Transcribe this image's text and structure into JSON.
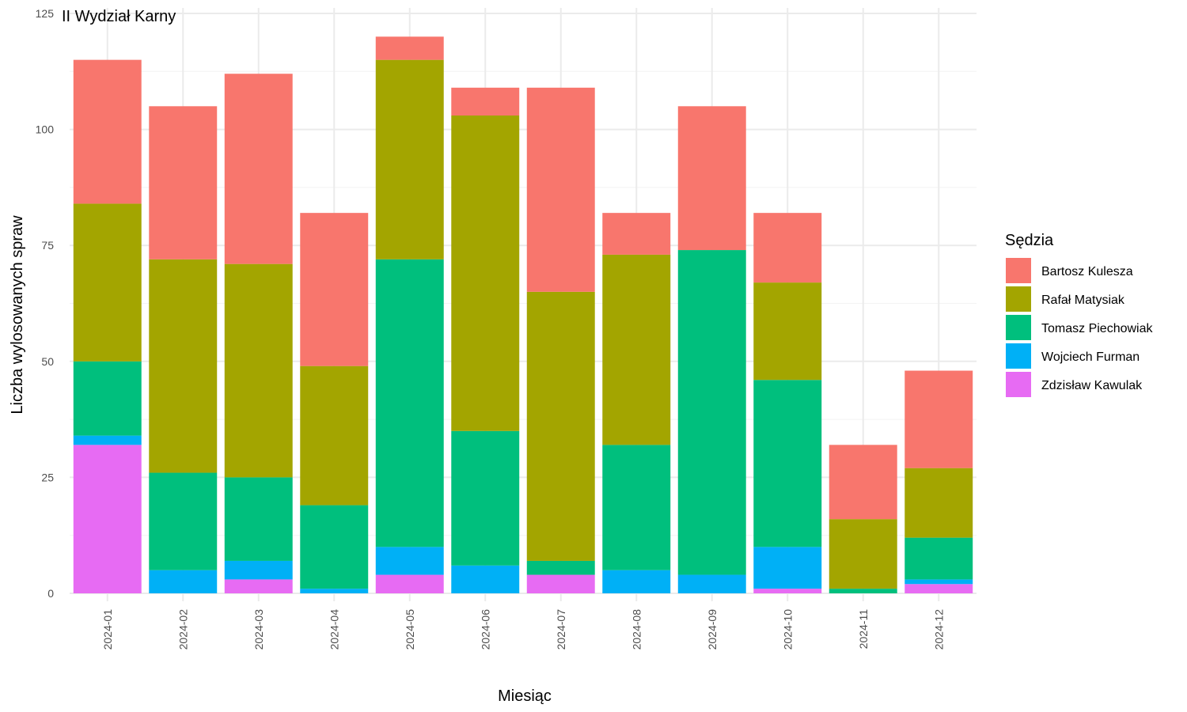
{
  "chart_data": {
    "type": "bar",
    "stacked": true,
    "title": "II Wydział Karny",
    "xlabel": "Miesiąc",
    "ylabel": "Liczba wylosowanych spraw",
    "ylim": [
      0,
      125
    ],
    "yticks": [
      0,
      25,
      50,
      75,
      100,
      125
    ],
    "grid": true,
    "legend_title": "Sędzia",
    "legend_position": "right",
    "categories": [
      "2024-01",
      "2024-02",
      "2024-03",
      "2024-04",
      "2024-05",
      "2024-06",
      "2024-07",
      "2024-08",
      "2024-09",
      "2024-10",
      "2024-11",
      "2024-12"
    ],
    "series": [
      {
        "name": "Bartosz Kulesza",
        "color": "#F8766D",
        "values": [
          31,
          33,
          41,
          33,
          5,
          6,
          44,
          9,
          31,
          15,
          16,
          21
        ]
      },
      {
        "name": "Rafał Matysiak",
        "color": "#A3A500",
        "values": [
          34,
          46,
          46,
          30,
          43,
          68,
          58,
          41,
          0,
          21,
          15,
          15
        ]
      },
      {
        "name": "Tomasz Piechowiak",
        "color": "#00BF7D",
        "values": [
          16,
          21,
          18,
          18,
          62,
          29,
          3,
          27,
          70,
          36,
          1,
          9
        ]
      },
      {
        "name": "Wojciech Furman",
        "color": "#00B0F6",
        "values": [
          2,
          5,
          4,
          1,
          6,
          6,
          0,
          5,
          4,
          9,
          0,
          1
        ]
      },
      {
        "name": "Zdzisław Kawulak",
        "color": "#E76BF3",
        "values": [
          32,
          0,
          3,
          0,
          4,
          0,
          4,
          0,
          0,
          1,
          0,
          2
        ]
      }
    ]
  }
}
